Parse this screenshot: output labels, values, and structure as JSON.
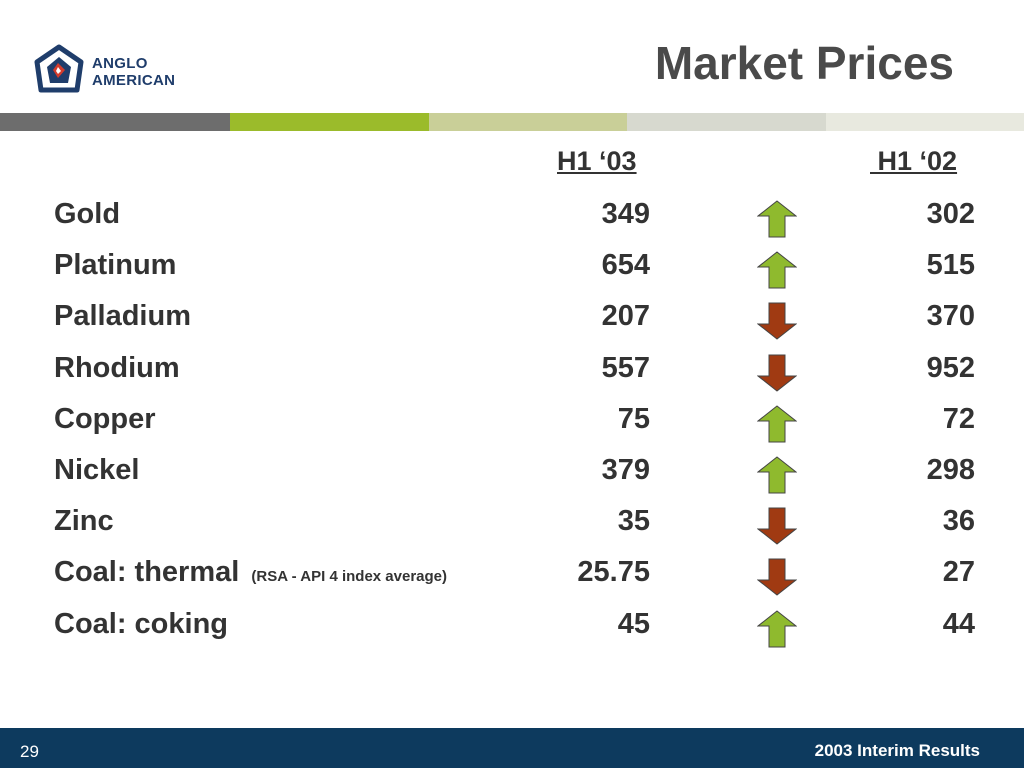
{
  "logo": {
    "line1": "ANGLO",
    "line2": "AMERICAN",
    "icon": "anglo-american-logo-icon"
  },
  "title": "Market Prices",
  "stripe_colors": [
    "#6d6d6d",
    "#9bbb2b",
    "#c9cf98",
    "#d7d9cf",
    "#e8e9df"
  ],
  "columns": {
    "h1_03": "H1 ‘03",
    "h1_02": " H1 ‘02"
  },
  "rows": [
    {
      "name": "Gold",
      "note": "",
      "h1_03": "349",
      "h1_02": "302",
      "trend": "up"
    },
    {
      "name": "Platinum",
      "note": "",
      "h1_03": "654",
      "h1_02": "515",
      "trend": "up"
    },
    {
      "name": "Palladium",
      "note": "",
      "h1_03": "207",
      "h1_02": "370",
      "trend": "down"
    },
    {
      "name": "Rhodium",
      "note": "",
      "h1_03": "557",
      "h1_02": "952",
      "trend": "down"
    },
    {
      "name": "Copper",
      "note": "",
      "h1_03": "75",
      "h1_02": "72",
      "trend": "up"
    },
    {
      "name": "Nickel",
      "note": "",
      "h1_03": "379",
      "h1_02": "298",
      "trend": "up"
    },
    {
      "name": "Zinc",
      "note": "",
      "h1_03": "35",
      "h1_02": "36",
      "trend": "down"
    },
    {
      "name": "Coal: thermal",
      "note": "(RSA - API 4 index average)",
      "h1_03": "25.75",
      "h1_02": "27",
      "trend": "down"
    },
    {
      "name": "Coal: coking",
      "note": "",
      "h1_03": "45",
      "h1_02": "44",
      "trend": "up"
    }
  ],
  "colors": {
    "arrow_up": "#8fba2e",
    "arrow_down": "#a03a12",
    "footer_bg": "#0d3a5e"
  },
  "footer": {
    "page_number": "29",
    "event": "2003 Interim Results"
  }
}
